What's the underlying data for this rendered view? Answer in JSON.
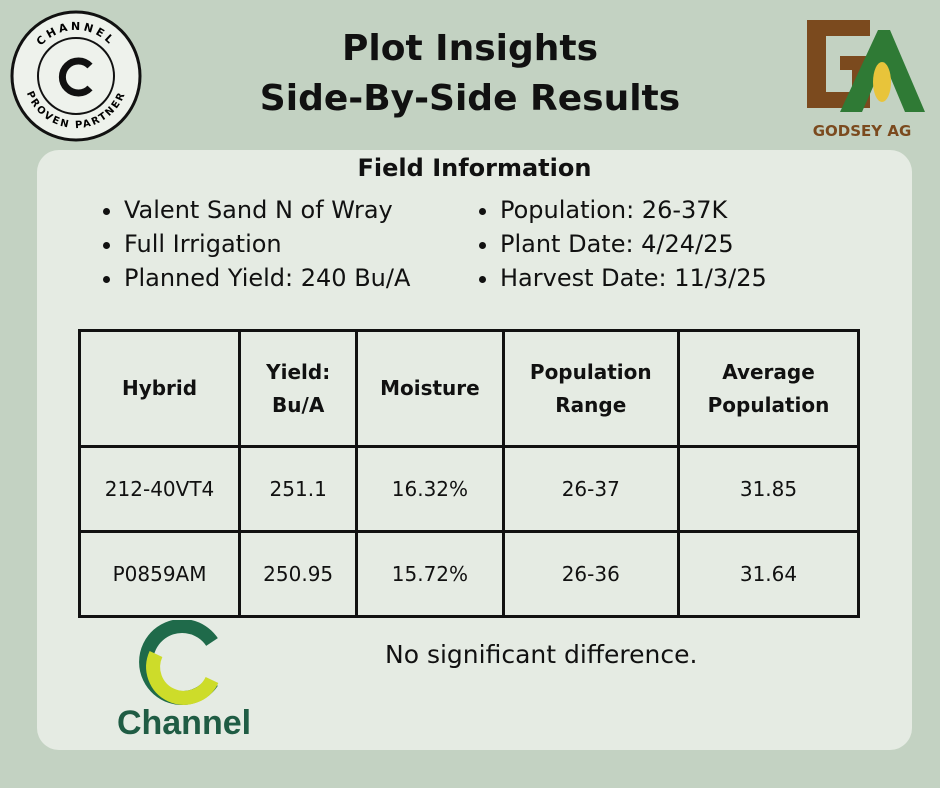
{
  "badge": {
    "top_text": "CHANNEL",
    "bottom_text": "PROVEN PARTNER"
  },
  "header": {
    "title_line_1": "Plot Insights",
    "title_line_2": "Side-By-Side Results"
  },
  "partner_logo": {
    "text": "GODSEY AG"
  },
  "field_information": {
    "heading": "Field Information",
    "left_items": [
      "Valent Sand N of Wray",
      "Full Irrigation",
      "Planned Yield: 240 Bu/A"
    ],
    "right_items": [
      "Population: 26-37K",
      "Plant Date: 4/24/25",
      "Harvest Date: 11/3/25"
    ]
  },
  "table": {
    "header": [
      [
        "Hybrid"
      ],
      [
        "Yield:",
        "Bu/A"
      ],
      [
        "Moisture"
      ],
      [
        "Population",
        "Range"
      ],
      [
        "Average",
        "Population"
      ]
    ],
    "rows": [
      [
        "212-40VT4",
        "251.1",
        "16.32%",
        "26-37",
        "31.85"
      ],
      [
        "P0859AM",
        "250.95",
        "15.72%",
        "26-36",
        "31.64"
      ]
    ]
  },
  "note": "No significant difference.",
  "brand_logo": {
    "text": "Channel"
  }
}
